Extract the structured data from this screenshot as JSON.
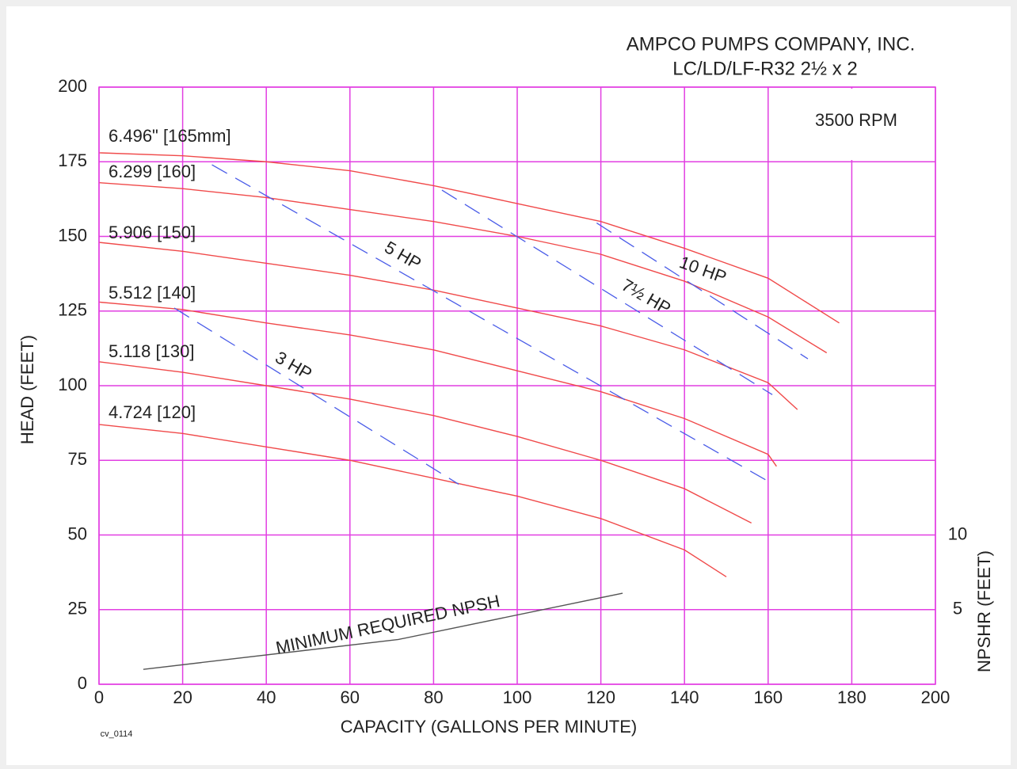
{
  "chart_data": {
    "type": "line",
    "title": "AMPCO PUMPS COMPANY, INC.",
    "subtitle": "LC/LD/LF-R32 2½ x 2",
    "annotations": [
      "3500 RPM",
      "cv_0114"
    ],
    "xlabel": "CAPACITY (GALLONS PER MINUTE)",
    "ylabel": "HEAD (FEET)",
    "y2label": "NPSHR (FEET)",
    "xlim": [
      0,
      200
    ],
    "ylim": [
      0,
      200
    ],
    "y2lim": [
      0,
      40
    ],
    "xticks": [
      0,
      20,
      40,
      60,
      80,
      100,
      120,
      140,
      160,
      180,
      200
    ],
    "yticks": [
      0,
      25,
      50,
      75,
      100,
      125,
      150,
      175,
      200
    ],
    "y2ticks": [
      5,
      10
    ],
    "grid": true,
    "grid_color": "#e23fe2",
    "series": [
      {
        "name": "6.496\" [165mm]",
        "color": "#f04a4a",
        "dash": false,
        "x": [
          0,
          20,
          40,
          60,
          80,
          100,
          120,
          140,
          160,
          177
        ],
        "values": [
          178,
          177,
          175,
          172,
          167,
          161,
          155,
          146,
          136,
          121
        ]
      },
      {
        "name": "6.299 [160]",
        "color": "#f04a4a",
        "dash": false,
        "x": [
          0,
          20,
          40,
          60,
          80,
          100,
          120,
          140,
          160,
          174
        ],
        "values": [
          168,
          166,
          163,
          159,
          155,
          150,
          144,
          135,
          123,
          111
        ]
      },
      {
        "name": "5.906 [150]",
        "color": "#f04a4a",
        "dash": false,
        "x": [
          0,
          20,
          40,
          60,
          80,
          100,
          120,
          140,
          160,
          167
        ],
        "values": [
          148,
          145,
          141,
          137,
          132,
          126,
          120,
          112,
          101,
          92
        ]
      },
      {
        "name": "5.512 [140]",
        "color": "#f04a4a",
        "dash": false,
        "x": [
          0,
          20,
          40,
          60,
          80,
          100,
          120,
          140,
          160,
          162
        ],
        "values": [
          128,
          125.5,
          121,
          117,
          112,
          105,
          98,
          89,
          77,
          73
        ]
      },
      {
        "name": "5.118 [130]",
        "color": "#f04a4a",
        "dash": false,
        "x": [
          0,
          20,
          40,
          60,
          80,
          100,
          120,
          140,
          156
        ],
        "values": [
          108,
          104.5,
          100,
          95.5,
          90,
          83,
          75,
          65.5,
          54
        ]
      },
      {
        "name": "4.724 [120]",
        "color": "#f04a4a",
        "dash": false,
        "x": [
          0,
          20,
          40,
          60,
          80,
          100,
          120,
          140,
          150
        ],
        "values": [
          87,
          84,
          79.5,
          75,
          69,
          63,
          55.5,
          45,
          36
        ]
      },
      {
        "name": "3 HP",
        "color": "#4a5ce8",
        "dash": true,
        "x": [
          18,
          86
        ],
        "values": [
          126,
          67
        ]
      },
      {
        "name": "5 HP",
        "color": "#4a5ce8",
        "dash": true,
        "x": [
          27,
          160
        ],
        "values": [
          174,
          68
        ]
      },
      {
        "name": "7½ HP",
        "color": "#4a5ce8",
        "dash": true,
        "x": [
          82,
          161
        ],
        "values": [
          165.5,
          97
        ]
      },
      {
        "name": "10 HP",
        "color": "#4a5ce8",
        "dash": true,
        "x": [
          119,
          169.5
        ],
        "values": [
          154.5,
          109
        ]
      },
      {
        "name": "MINIMUM REQUIRED NPSH",
        "color": "#555555",
        "dash": false,
        "axis": "y2",
        "x": [
          10.6,
          71.6,
          125.2
        ],
        "values": [
          1,
          3,
          6.1
        ]
      }
    ]
  }
}
